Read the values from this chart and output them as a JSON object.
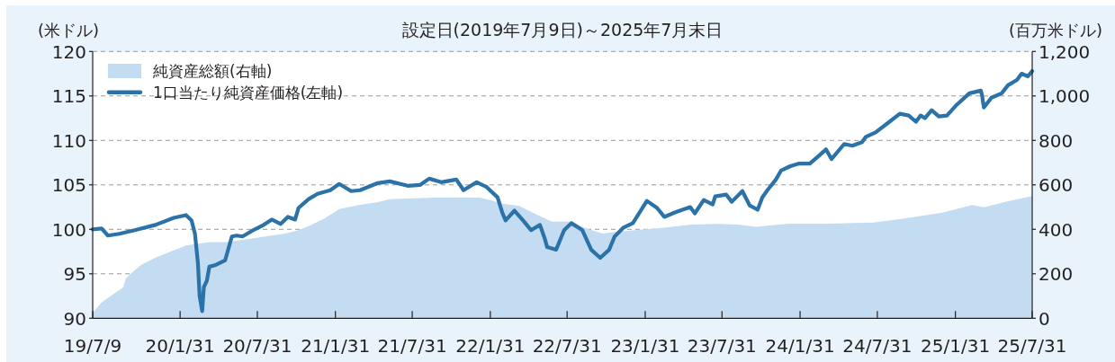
{
  "chart_data": {
    "type": "line",
    "title": "設定日(2019年7月9日)～2025年7月末日",
    "ylabel": "(米ドル)",
    "y2label": "(百万米ドル)",
    "xlim": [
      "2019-07-09",
      "2025-07-31"
    ],
    "xticks": [
      {
        "value": "2019-07-09",
        "label": "19/7/9"
      },
      {
        "value": "2020-01-31",
        "label": "20/1/31"
      },
      {
        "value": "2020-07-31",
        "label": "20/7/31"
      },
      {
        "value": "2021-01-31",
        "label": "21/1/31"
      },
      {
        "value": "2021-07-31",
        "label": "21/7/31"
      },
      {
        "value": "2022-01-31",
        "label": "22/1/31"
      },
      {
        "value": "2022-07-31",
        "label": "22/7/31"
      },
      {
        "value": "2023-01-31",
        "label": "23/1/31"
      },
      {
        "value": "2023-07-31",
        "label": "23/7/31"
      },
      {
        "value": "2024-01-31",
        "label": "24/1/31"
      },
      {
        "value": "2024-07-31",
        "label": "24/7/31"
      },
      {
        "value": "2025-01-31",
        "label": "25/1/31"
      },
      {
        "value": "2025-07-31",
        "label": "25/7/31"
      }
    ],
    "ylim": [
      90,
      120
    ],
    "yticks": [
      90,
      95,
      100,
      105,
      110,
      115,
      120
    ],
    "y2lim": [
      0,
      1200
    ],
    "y2ticks": [
      0,
      200,
      400,
      600,
      800,
      {
        "value": 1000,
        "label": "1,000"
      },
      {
        "value": 1200,
        "label": "1,200"
      }
    ],
    "grid": "y",
    "legend": "top left",
    "series": [
      {
        "name": "純資産総額(右軸)",
        "type": "area",
        "axis": "y2",
        "color": "#c4dcf1",
        "x": [
          "2019-07-09",
          "2019-07-30",
          "2019-08-29",
          "2019-09-19",
          "2019-09-25",
          "2019-10-10",
          "2019-10-31",
          "2019-12-04",
          "2020-01-09",
          "2020-02-14",
          "2020-04-10",
          "2020-05-22",
          "2020-07-25",
          "2020-10-05",
          "2020-11-01",
          "2020-11-29",
          "2021-01-04",
          "2021-02-09",
          "2021-03-30",
          "2021-05-11",
          "2021-06-08",
          "2021-09-22",
          "2022-01-06",
          "2022-02-04",
          "2022-02-25",
          "2022-04-09",
          "2022-05-13",
          "2022-06-25",
          "2022-08-06",
          "2022-09-18",
          "2022-10-23",
          "2022-11-20",
          "2022-12-26",
          "2023-03-06",
          "2023-05-17",
          "2023-07-26",
          "2023-09-07",
          "2023-10-19",
          "2024-01-05",
          "2024-04-06",
          "2024-07-21",
          "2024-09-29",
          "2024-12-31",
          "2025-03-11",
          "2025-04-08",
          "2025-06-04",
          "2025-07-31"
        ],
        "values": [
          24,
          71,
          112,
          139,
          179,
          206,
          240,
          273,
          300,
          327,
          343,
          343,
          361,
          381,
          394,
          414,
          448,
          491,
          510,
          522,
          536,
          543,
          543,
          529,
          516,
          505,
          473,
          435,
          435,
          401,
          381,
          388,
          394,
          405,
          421,
          424,
          421,
          411,
          425,
          425,
          431,
          448,
          475,
          509,
          499,
          526,
          550
        ]
      },
      {
        "name": "1口当たり純資産価格(左軸)",
        "color": "#2a72a8",
        "x": [
          "2019-07-09",
          "2019-07-30",
          "2019-08-14",
          "2019-09-10",
          "2019-10-16",
          "2019-12-04",
          "2020-01-16",
          "2020-02-14",
          "2020-02-27",
          "2020-03-06",
          "2020-03-13",
          "2020-03-17",
          "2020-03-23",
          "2020-03-27",
          "2020-04-03",
          "2020-04-09",
          "2020-04-24",
          "2020-05-16",
          "2020-06-01",
          "2020-06-12",
          "2020-06-26",
          "2020-07-25",
          "2020-08-15",
          "2020-09-03",
          "2020-09-24",
          "2020-10-11",
          "2020-10-28",
          "2020-11-05",
          "2020-11-29",
          "2020-12-20",
          "2021-01-19",
          "2021-02-09",
          "2021-03-09",
          "2021-03-30",
          "2021-05-11",
          "2021-06-08",
          "2021-07-20",
          "2021-08-19",
          "2021-09-09",
          "2021-10-07",
          "2021-11-12",
          "2021-11-29",
          "2021-12-30",
          "2022-01-21",
          "2022-02-17",
          "2022-02-28",
          "2022-03-08",
          "2022-03-29",
          "2022-04-20",
          "2022-05-07",
          "2022-05-28",
          "2022-06-08",
          "2022-06-14",
          "2022-07-05",
          "2022-07-24",
          "2022-08-10",
          "2022-09-05",
          "2022-09-26",
          "2022-10-17",
          "2022-11-07",
          "2022-11-20",
          "2022-12-11",
          "2023-01-02",
          "2023-02-04",
          "2023-02-28",
          "2023-03-17",
          "2023-04-11",
          "2023-05-17",
          "2023-05-28",
          "2023-06-18",
          "2023-07-09",
          "2023-07-15",
          "2023-08-10",
          "2023-08-23",
          "2023-09-17",
          "2023-10-04",
          "2023-10-23",
          "2023-11-03",
          "2023-11-15",
          "2023-12-05",
          "2023-12-17",
          "2024-01-08",
          "2024-01-29",
          "2024-02-23",
          "2024-03-16",
          "2024-04-01",
          "2024-04-14",
          "2024-05-14",
          "2024-06-02",
          "2024-06-25",
          "2024-07-04",
          "2024-07-27",
          "2024-08-26",
          "2024-09-22",
          "2024-10-13",
          "2024-10-30",
          "2024-11-10",
          "2024-11-20",
          "2024-12-06",
          "2024-12-23",
          "2025-01-11",
          "2025-02-03",
          "2025-03-05",
          "2025-04-01",
          "2025-04-04",
          "2025-04-08",
          "2025-04-26",
          "2025-05-20",
          "2025-06-04",
          "2025-06-25",
          "2025-07-06",
          "2025-07-21",
          "2025-07-31"
        ],
        "values": [
          100.0,
          100.1,
          99.3,
          99.5,
          99.9,
          100.5,
          101.3,
          101.6,
          101.0,
          99.5,
          96.2,
          92.5,
          90.8,
          93.5,
          94.2,
          95.8,
          96.0,
          96.5,
          99.2,
          99.3,
          99.2,
          100.0,
          100.5,
          101.1,
          100.6,
          101.4,
          101.1,
          102.4,
          103.4,
          104.0,
          104.4,
          105.1,
          104.3,
          104.4,
          105.2,
          105.4,
          104.9,
          105.0,
          105.7,
          105.3,
          105.6,
          104.4,
          105.3,
          104.8,
          103.6,
          101.9,
          101.0,
          102.1,
          100.9,
          99.9,
          100.5,
          99.0,
          98.0,
          97.7,
          99.9,
          100.7,
          99.9,
          97.7,
          96.8,
          97.7,
          99.2,
          100.2,
          100.7,
          103.2,
          102.4,
          101.4,
          101.9,
          102.5,
          101.8,
          103.3,
          102.8,
          103.7,
          103.9,
          103.1,
          104.3,
          102.7,
          102.2,
          103.6,
          104.4,
          105.6,
          106.6,
          107.1,
          107.4,
          107.4,
          108.3,
          109.0,
          107.9,
          109.6,
          109.4,
          109.8,
          110.4,
          110.9,
          112.0,
          113.0,
          112.8,
          112.1,
          112.8,
          112.5,
          113.4,
          112.7,
          112.8,
          114.0,
          115.3,
          115.6,
          115.0,
          113.7,
          114.8,
          115.3,
          116.2,
          116.8,
          117.5,
          117.2,
          117.8
        ]
      }
    ]
  }
}
